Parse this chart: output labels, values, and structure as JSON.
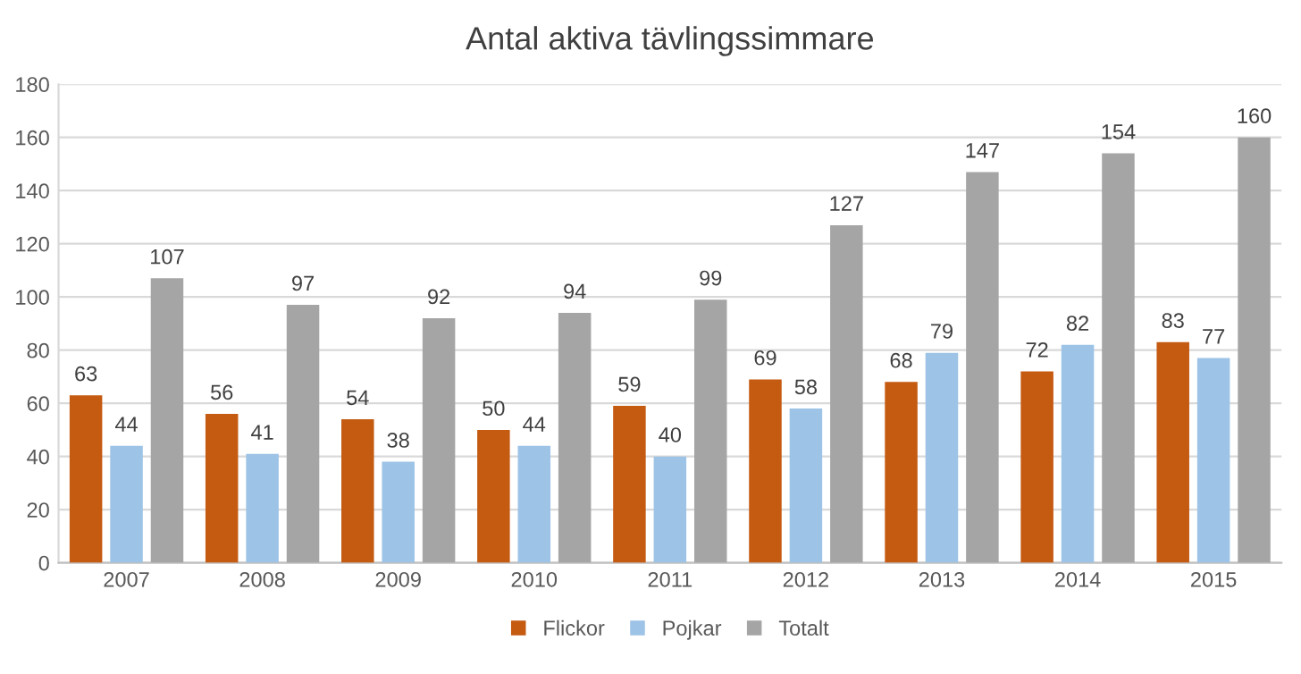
{
  "chart_data": {
    "type": "bar",
    "title": "Antal aktiva tävlingssimmare",
    "categories": [
      "2007",
      "2008",
      "2009",
      "2010",
      "2011",
      "2012",
      "2013",
      "2014",
      "2015"
    ],
    "series": [
      {
        "name": "Flickor",
        "color": "#c55a11",
        "values": [
          63,
          56,
          54,
          50,
          59,
          69,
          68,
          72,
          83
        ]
      },
      {
        "name": "Pojkar",
        "color": "#9dc3e6",
        "values": [
          44,
          41,
          38,
          44,
          40,
          58,
          79,
          82,
          77
        ]
      },
      {
        "name": "Totalt",
        "color": "#a5a5a5",
        "values": [
          107,
          97,
          92,
          94,
          99,
          127,
          147,
          154,
          160
        ]
      }
    ],
    "ylim": [
      0,
      180
    ],
    "yticks": [
      0,
      20,
      40,
      60,
      80,
      100,
      120,
      140,
      160,
      180
    ],
    "grid": "y",
    "legend": "bottom",
    "data_labels": true
  }
}
